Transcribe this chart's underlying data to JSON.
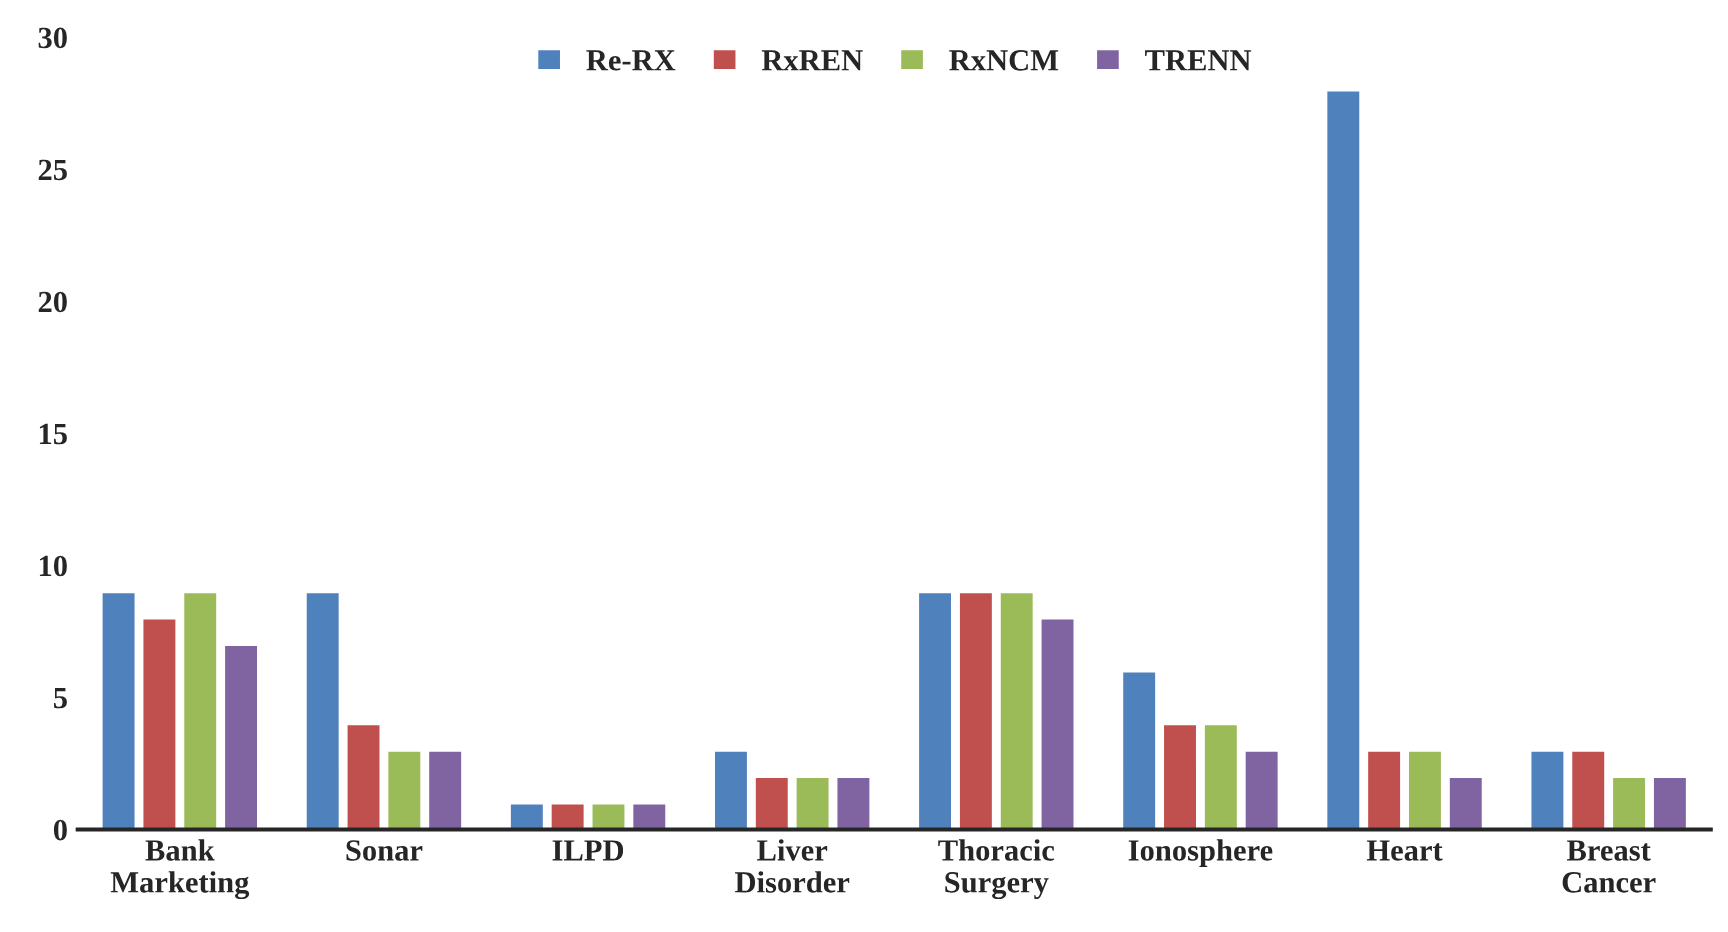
{
  "chart_data": {
    "type": "bar",
    "categories": [
      "Bank\nMarketing",
      "Sonar",
      "ILPD",
      "Liver\nDisorder",
      "Thoracic\nSurgery",
      "Ionosphere",
      "Heart",
      "Breast\nCancer"
    ],
    "series": [
      {
        "name": "Re-RX",
        "color": "#4f81bd",
        "values": [
          9,
          9,
          1,
          3,
          9,
          6,
          28,
          3
        ]
      },
      {
        "name": "RxREN",
        "color": "#c0504d",
        "values": [
          8,
          4,
          1,
          2,
          9,
          4,
          3,
          3
        ]
      },
      {
        "name": "RxNCM",
        "color": "#9bbb59",
        "values": [
          9,
          3,
          1,
          2,
          9,
          4,
          3,
          2
        ]
      },
      {
        "name": "TRENN",
        "color": "#8064a2",
        "values": [
          7,
          3,
          1,
          2,
          8,
          3,
          2,
          2
        ]
      }
    ],
    "ylim": [
      0,
      30
    ],
    "yticks": [
      0,
      5,
      10,
      15,
      20,
      25,
      30
    ],
    "grid": false,
    "legend": "top"
  }
}
